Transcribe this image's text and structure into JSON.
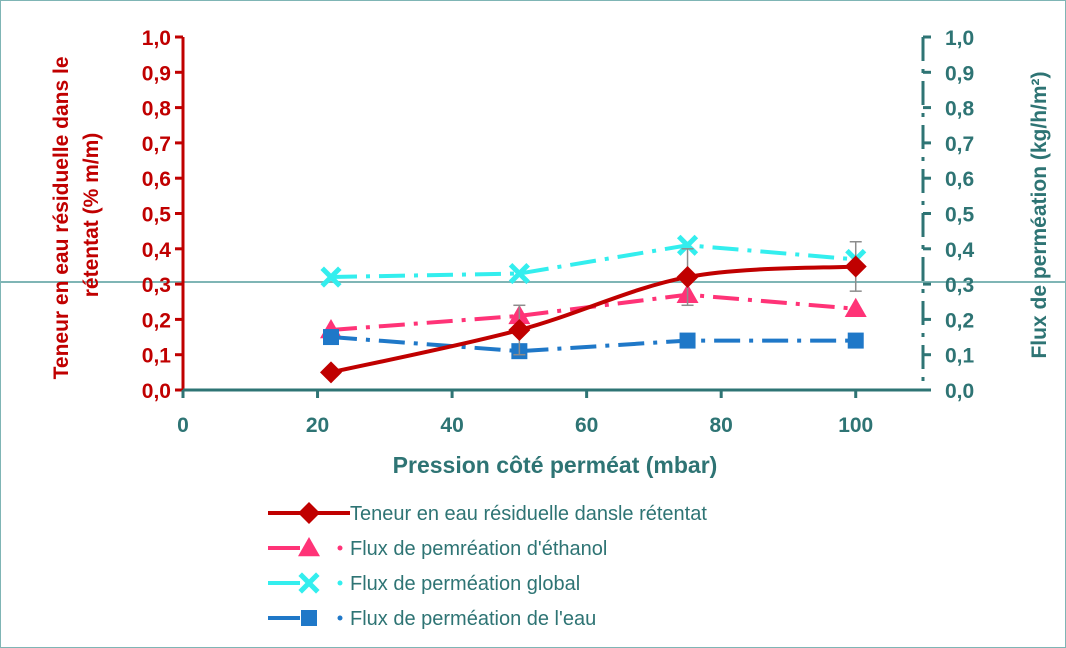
{
  "chart_data": {
    "type": "line",
    "title": "",
    "xlabel": "Pression côté perméat (mbar)",
    "ylabel_left": "Teneur en eau résiduelle  dans le rétentat (% m/m)",
    "ylabel_right": "Flux de perméation (kg/h/m²)",
    "xlim": [
      0,
      110
    ],
    "ylim_left": [
      0,
      1
    ],
    "ylim_right": [
      0,
      1
    ],
    "x_ticks": [
      "0",
      "20",
      "40",
      "60",
      "80",
      "100"
    ],
    "x_tick_values": [
      0,
      20,
      40,
      60,
      80,
      100
    ],
    "y_ticks_left": [
      "0,0",
      "0,1",
      "0,2",
      "0,3",
      "0,4",
      "0,5",
      "0,6",
      "0,7",
      "0,8",
      "0,9",
      "1,0"
    ],
    "y_ticks_right": [
      "0,0",
      "0,1",
      "0,2",
      "0,3",
      "0,4",
      "0,5",
      "0,6",
      "0,7",
      "0,8",
      "0,9",
      "1,0"
    ],
    "legend_position": "bottom",
    "series": [
      {
        "name": "Teneur en eau résiduelle dansle rétentat",
        "axis": "left",
        "x": [
          22,
          50,
          75,
          100
        ],
        "values": [
          0.05,
          0.17,
          0.32,
          0.35
        ],
        "error": [
          0,
          0.07,
          0.08,
          0.07
        ],
        "color": "#c00000",
        "marker": "diamond",
        "dash": "solid"
      },
      {
        "name": "Flux de pemréation d'éthanol",
        "axis": "right",
        "x": [
          22,
          50,
          75,
          100
        ],
        "values": [
          0.17,
          0.21,
          0.27,
          0.23
        ],
        "color": "#ff3377",
        "marker": "triangle",
        "dash": "dashdot"
      },
      {
        "name": "Flux de perméation global",
        "axis": "right",
        "x": [
          22,
          50,
          75,
          100
        ],
        "values": [
          0.32,
          0.33,
          0.41,
          0.37
        ],
        "color": "#33eeee",
        "marker": "cross",
        "dash": "dashdot"
      },
      {
        "name": "Flux de perméation de l'eau",
        "axis": "right",
        "x": [
          22,
          50,
          75,
          100
        ],
        "values": [
          0.15,
          0.11,
          0.14,
          0.14
        ],
        "color": "#1f78c8",
        "marker": "square",
        "dash": "dashdot"
      }
    ]
  }
}
